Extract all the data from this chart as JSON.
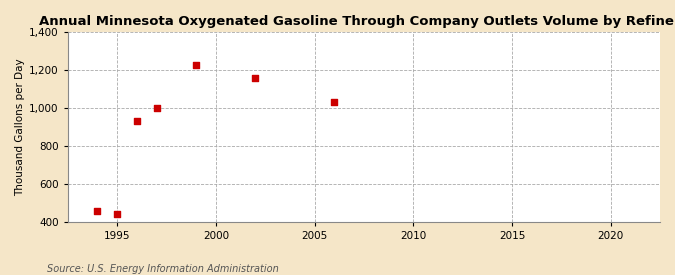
{
  "title": "Annual Minnesota Oxygenated Gasoline Through Company Outlets Volume by Refiners",
  "ylabel": "Thousand Gallons per Day",
  "source": "Source: U.S. Energy Information Administration",
  "fig_background_color": "#f5e6c8",
  "plot_background_color": "#ffffff",
  "data_points": [
    [
      1994,
      455
    ],
    [
      1995,
      440
    ],
    [
      1996,
      930
    ],
    [
      1997,
      1000
    ],
    [
      1999,
      1225
    ],
    [
      2002,
      1155
    ],
    [
      2006,
      1030
    ]
  ],
  "marker_color": "#cc0000",
  "marker_style": "s",
  "marker_size": 5,
  "xlim": [
    1992.5,
    2022.5
  ],
  "ylim": [
    400,
    1400
  ],
  "xticks": [
    1995,
    2000,
    2005,
    2010,
    2015,
    2020
  ],
  "yticks": [
    400,
    600,
    800,
    1000,
    1200,
    1400
  ],
  "grid_color": "#aaaaaa",
  "grid_linestyle": "--",
  "title_fontsize": 9.5,
  "label_fontsize": 7.5,
  "tick_fontsize": 7.5,
  "source_fontsize": 7
}
